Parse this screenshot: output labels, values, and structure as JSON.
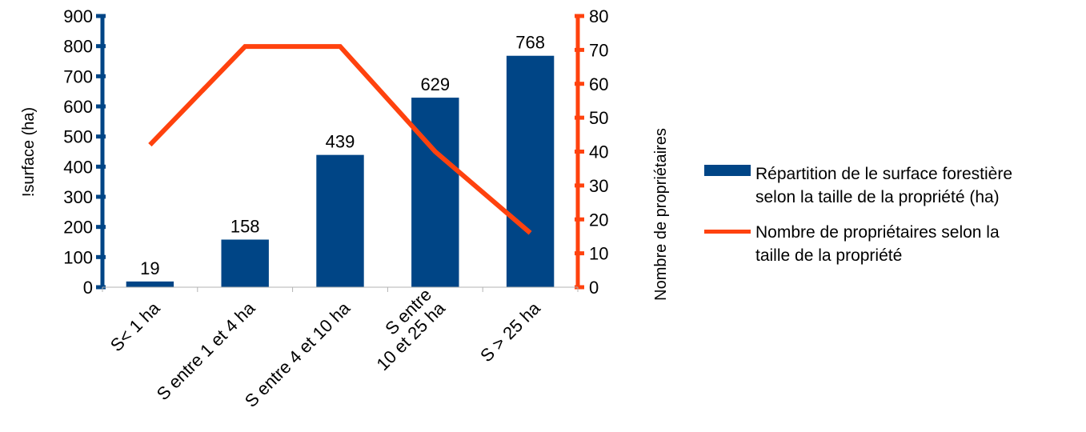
{
  "chart_data": {
    "type": "bar",
    "categories": [
      [
        "S< 1 ha"
      ],
      [
        "S entre 1 et 4 ha"
      ],
      [
        "S entre 4 et 10 ha"
      ],
      [
        "S entre",
        "10 et 25 ha"
      ],
      [
        "S > 25 ha"
      ]
    ],
    "series": [
      {
        "name": "Répartition de le surface forestière selon la taille de la propriété (ha)",
        "legend_lines": [
          "Répartition de le surface forestière",
          "selon la taille de la propriété (ha)"
        ],
        "type": "bar",
        "axis": "left",
        "color": "#004586",
        "values": [
          19,
          158,
          439,
          629,
          768
        ]
      },
      {
        "name": "Nombre de propriétaires selon la taille de la propriété",
        "legend_lines": [
          "Nombre de propriétaires selon la",
          "taille de la propriété"
        ],
        "type": "line",
        "axis": "right",
        "color": "#ff420e",
        "values": [
          42,
          71,
          71,
          40,
          16
        ]
      }
    ],
    "data_labels": [
      "19",
      "158",
      "439",
      "629",
      "768"
    ],
    "y_left": {
      "label": "!surface (ha)",
      "lim": [
        0,
        900
      ],
      "ticks": [
        0,
        100,
        200,
        300,
        400,
        500,
        600,
        700,
        800,
        900
      ],
      "color": "#004586"
    },
    "y_right": {
      "label": "Nombre de propriétaires",
      "lim": [
        0,
        80
      ],
      "ticks": [
        0,
        10,
        20,
        30,
        40,
        50,
        60,
        70,
        80
      ],
      "color": "#ff420e"
    },
    "grid": false,
    "legend_position": "right"
  }
}
